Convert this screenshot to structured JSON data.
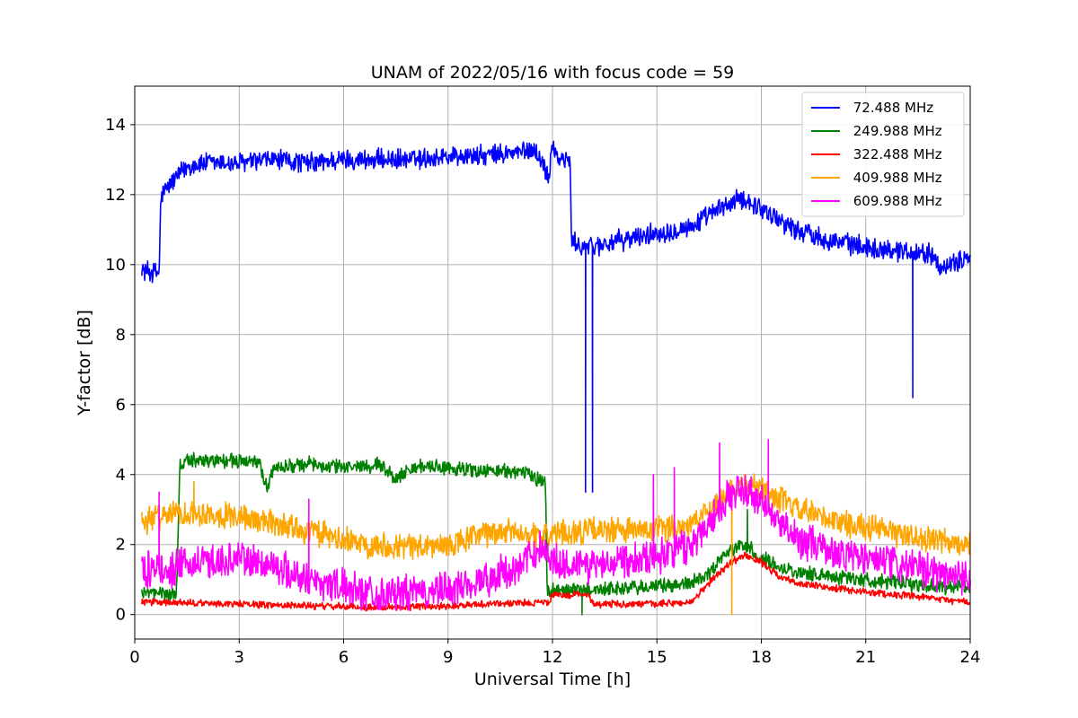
{
  "chart_data": {
    "type": "line",
    "title": "UNAM of 2022/05/16 with focus code = 59",
    "xlabel": "Universal Time [h]",
    "ylabel": "Y-factor [dB]",
    "xlim": [
      0,
      24
    ],
    "ylim": [
      -0.7,
      15.1
    ],
    "xticks": [
      "0",
      "3",
      "6",
      "9",
      "12",
      "15",
      "18",
      "21",
      "24"
    ],
    "yticks": [
      "0",
      "2",
      "4",
      "6",
      "8",
      "10",
      "12",
      "14"
    ],
    "grid": true,
    "legend_position": "top-right",
    "series": [
      {
        "name": " 72.488 MHz",
        "color": "#0000ff",
        "noise": 0.35,
        "x": [
          0.2,
          0.7,
          0.75,
          0.8,
          1.0,
          1.5,
          2.0,
          3.0,
          4.0,
          5.0,
          6.0,
          7.0,
          8.0,
          9.0,
          10.0,
          11.0,
          11.5,
          11.9,
          12.0,
          12.1,
          12.3,
          12.5,
          12.55,
          12.6,
          13.0,
          14.0,
          15.0,
          16.0,
          17.0,
          17.5,
          18.0,
          19.0,
          20.0,
          21.0,
          22.0,
          23.0,
          23.2,
          24.0
        ],
        "y": [
          9.85,
          9.75,
          11.9,
          12.0,
          12.3,
          12.8,
          12.9,
          12.9,
          13.0,
          12.9,
          13.0,
          13.0,
          13.0,
          13.1,
          13.1,
          13.2,
          13.3,
          12.5,
          13.6,
          13.1,
          13.0,
          13.0,
          10.7,
          10.6,
          10.5,
          10.7,
          10.9,
          11.1,
          11.7,
          11.9,
          11.6,
          11.0,
          10.7,
          10.5,
          10.4,
          10.3,
          9.8,
          10.3
        ],
        "spikes": [
          [
            12.95,
            3.5
          ],
          [
            13.15,
            3.5
          ],
          [
            22.35,
            6.2
          ]
        ]
      },
      {
        "name": " 249.988 MHz",
        "color": "#008000",
        "noise": 0.25,
        "x": [
          0.2,
          1.2,
          1.3,
          1.5,
          2.0,
          3.0,
          3.6,
          3.8,
          4.0,
          5.0,
          6.0,
          7.0,
          7.5,
          8.0,
          9.0,
          10.0,
          11.0,
          11.8,
          11.85,
          12.0,
          13.0,
          14.0,
          15.0,
          16.0,
          16.5,
          17.0,
          17.5,
          18.0,
          19.0,
          20.0,
          21.0,
          22.0,
          23.0,
          24.0
        ],
        "y": [
          0.6,
          0.6,
          4.3,
          4.4,
          4.4,
          4.4,
          4.3,
          3.6,
          4.2,
          4.3,
          4.2,
          4.3,
          3.9,
          4.2,
          4.2,
          4.1,
          4.1,
          3.8,
          0.6,
          0.7,
          0.7,
          0.75,
          0.8,
          0.9,
          1.2,
          1.8,
          2.0,
          1.6,
          1.2,
          1.1,
          1.0,
          0.9,
          0.8,
          0.8
        ],
        "spikes": [
          [
            12.85,
            0.0
          ],
          [
            17.6,
            3.0
          ]
        ]
      },
      {
        "name": " 322.488 MHz",
        "color": "#ff0000",
        "noise": 0.12,
        "x": [
          0.2,
          3.0,
          5.0,
          7.0,
          9.0,
          10.0,
          11.9,
          12.0,
          12.5,
          13.0,
          13.2,
          14.0,
          15.0,
          16.0,
          16.5,
          17.0,
          17.5,
          18.0,
          18.5,
          19.0,
          20.0,
          21.0,
          22.0,
          23.0,
          24.0
        ],
        "y": [
          0.35,
          0.3,
          0.25,
          0.2,
          0.25,
          0.3,
          0.35,
          0.55,
          0.55,
          0.6,
          0.3,
          0.3,
          0.3,
          0.35,
          0.9,
          1.4,
          1.7,
          1.5,
          1.1,
          0.9,
          0.75,
          0.65,
          0.55,
          0.45,
          0.35
        ],
        "spikes": []
      },
      {
        "name": " 409.988 MHz",
        "color": "#ffa500",
        "noise": 0.45,
        "x": [
          0.2,
          1.0,
          2.0,
          3.0,
          4.0,
          5.0,
          6.0,
          7.0,
          8.0,
          9.0,
          10.0,
          11.0,
          11.5,
          12.0,
          13.0,
          14.0,
          15.0,
          16.0,
          16.5,
          17.0,
          17.5,
          18.0,
          19.0,
          20.0,
          21.0,
          22.0,
          23.0,
          24.0
        ],
        "y": [
          2.6,
          2.9,
          2.9,
          2.8,
          2.6,
          2.4,
          2.1,
          2.0,
          1.95,
          1.95,
          2.3,
          2.4,
          2.2,
          2.3,
          2.4,
          2.4,
          2.4,
          2.6,
          3.0,
          3.5,
          3.7,
          3.6,
          3.0,
          2.7,
          2.5,
          2.3,
          2.1,
          2.0
        ],
        "spikes": [
          [
            17.15,
            0.0
          ],
          [
            1.7,
            3.8
          ]
        ]
      },
      {
        "name": " 609.988 MHz",
        "color": "#ff00ff",
        "noise": 0.6,
        "x": [
          0.2,
          1.0,
          2.0,
          3.0,
          4.0,
          5.0,
          6.0,
          7.0,
          8.0,
          9.0,
          10.0,
          11.0,
          11.7,
          12.0,
          13.0,
          14.0,
          15.0,
          16.0,
          16.5,
          17.0,
          17.5,
          18.0,
          18.5,
          19.0,
          20.0,
          21.0,
          22.0,
          23.0,
          24.0
        ],
        "y": [
          1.3,
          1.3,
          1.5,
          1.6,
          1.4,
          1.0,
          0.8,
          0.6,
          0.6,
          0.7,
          1.0,
          1.3,
          2.0,
          1.5,
          1.4,
          1.6,
          1.7,
          2.0,
          2.7,
          3.3,
          3.6,
          3.2,
          2.6,
          2.2,
          1.8,
          1.6,
          1.4,
          1.2,
          1.1
        ],
        "spikes": [
          [
            16.8,
            4.9
          ],
          [
            18.2,
            5.0
          ],
          [
            0.7,
            3.5
          ],
          [
            5.0,
            3.3
          ],
          [
            14.9,
            4.0
          ],
          [
            15.5,
            4.2
          ]
        ]
      }
    ]
  }
}
